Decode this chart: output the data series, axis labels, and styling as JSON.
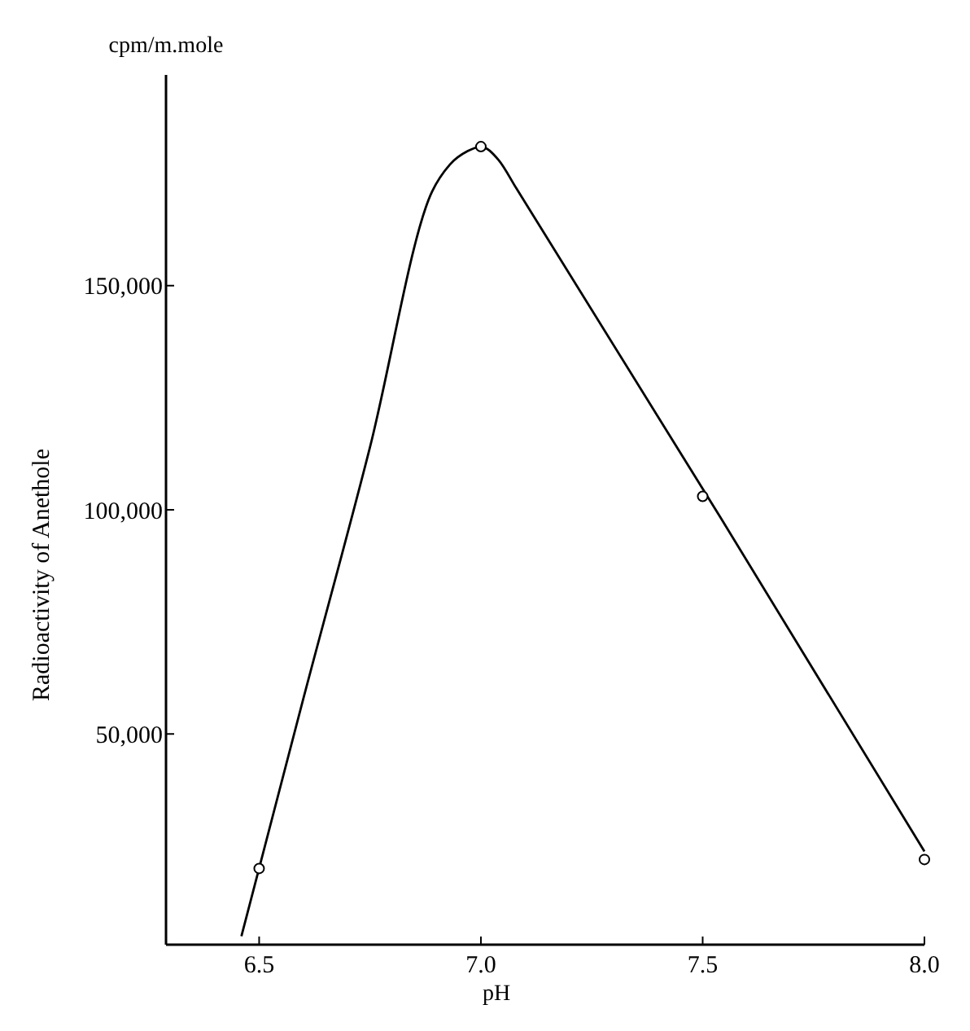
{
  "chart_data": {
    "type": "scatter",
    "xlabel": "pH",
    "ylabel": "Radioactivity of Anethole",
    "annotations": [
      "cpm/m.mole"
    ],
    "xlim": [
      6.29,
      8.0
    ],
    "ylim": [
      3000,
      197000
    ],
    "xticks": [
      {
        "value": 6.5,
        "label": "6.5"
      },
      {
        "value": 7.0,
        "label": "7.0"
      },
      {
        "value": 7.5,
        "label": "7.5"
      },
      {
        "value": 8.0,
        "label": "8.0"
      }
    ],
    "yticks": [
      {
        "value": 50000,
        "label": "50,000"
      },
      {
        "value": 100000,
        "label": "100,000"
      },
      {
        "value": 150000,
        "label": "150,000"
      }
    ],
    "grid": false,
    "series": [
      {
        "type": "line",
        "color": "#000000",
        "marker": "none",
        "line_style": "solid",
        "x": [
          6.46,
          6.6,
          6.75,
          6.89,
          6.93,
          6.97,
          7.0,
          7.04,
          7.08,
          7.54,
          8.0
        ],
        "values": [
          4900,
          58000,
          114000,
          171000,
          177000,
          180000,
          181000,
          178000,
          171700,
          98300,
          23800
        ]
      },
      {
        "color": "#000000",
        "marker": "circle",
        "x": [
          6.5,
          7.0,
          7.5,
          8.0
        ],
        "values": [
          20000,
          181000,
          103000,
          22000
        ]
      }
    ]
  }
}
